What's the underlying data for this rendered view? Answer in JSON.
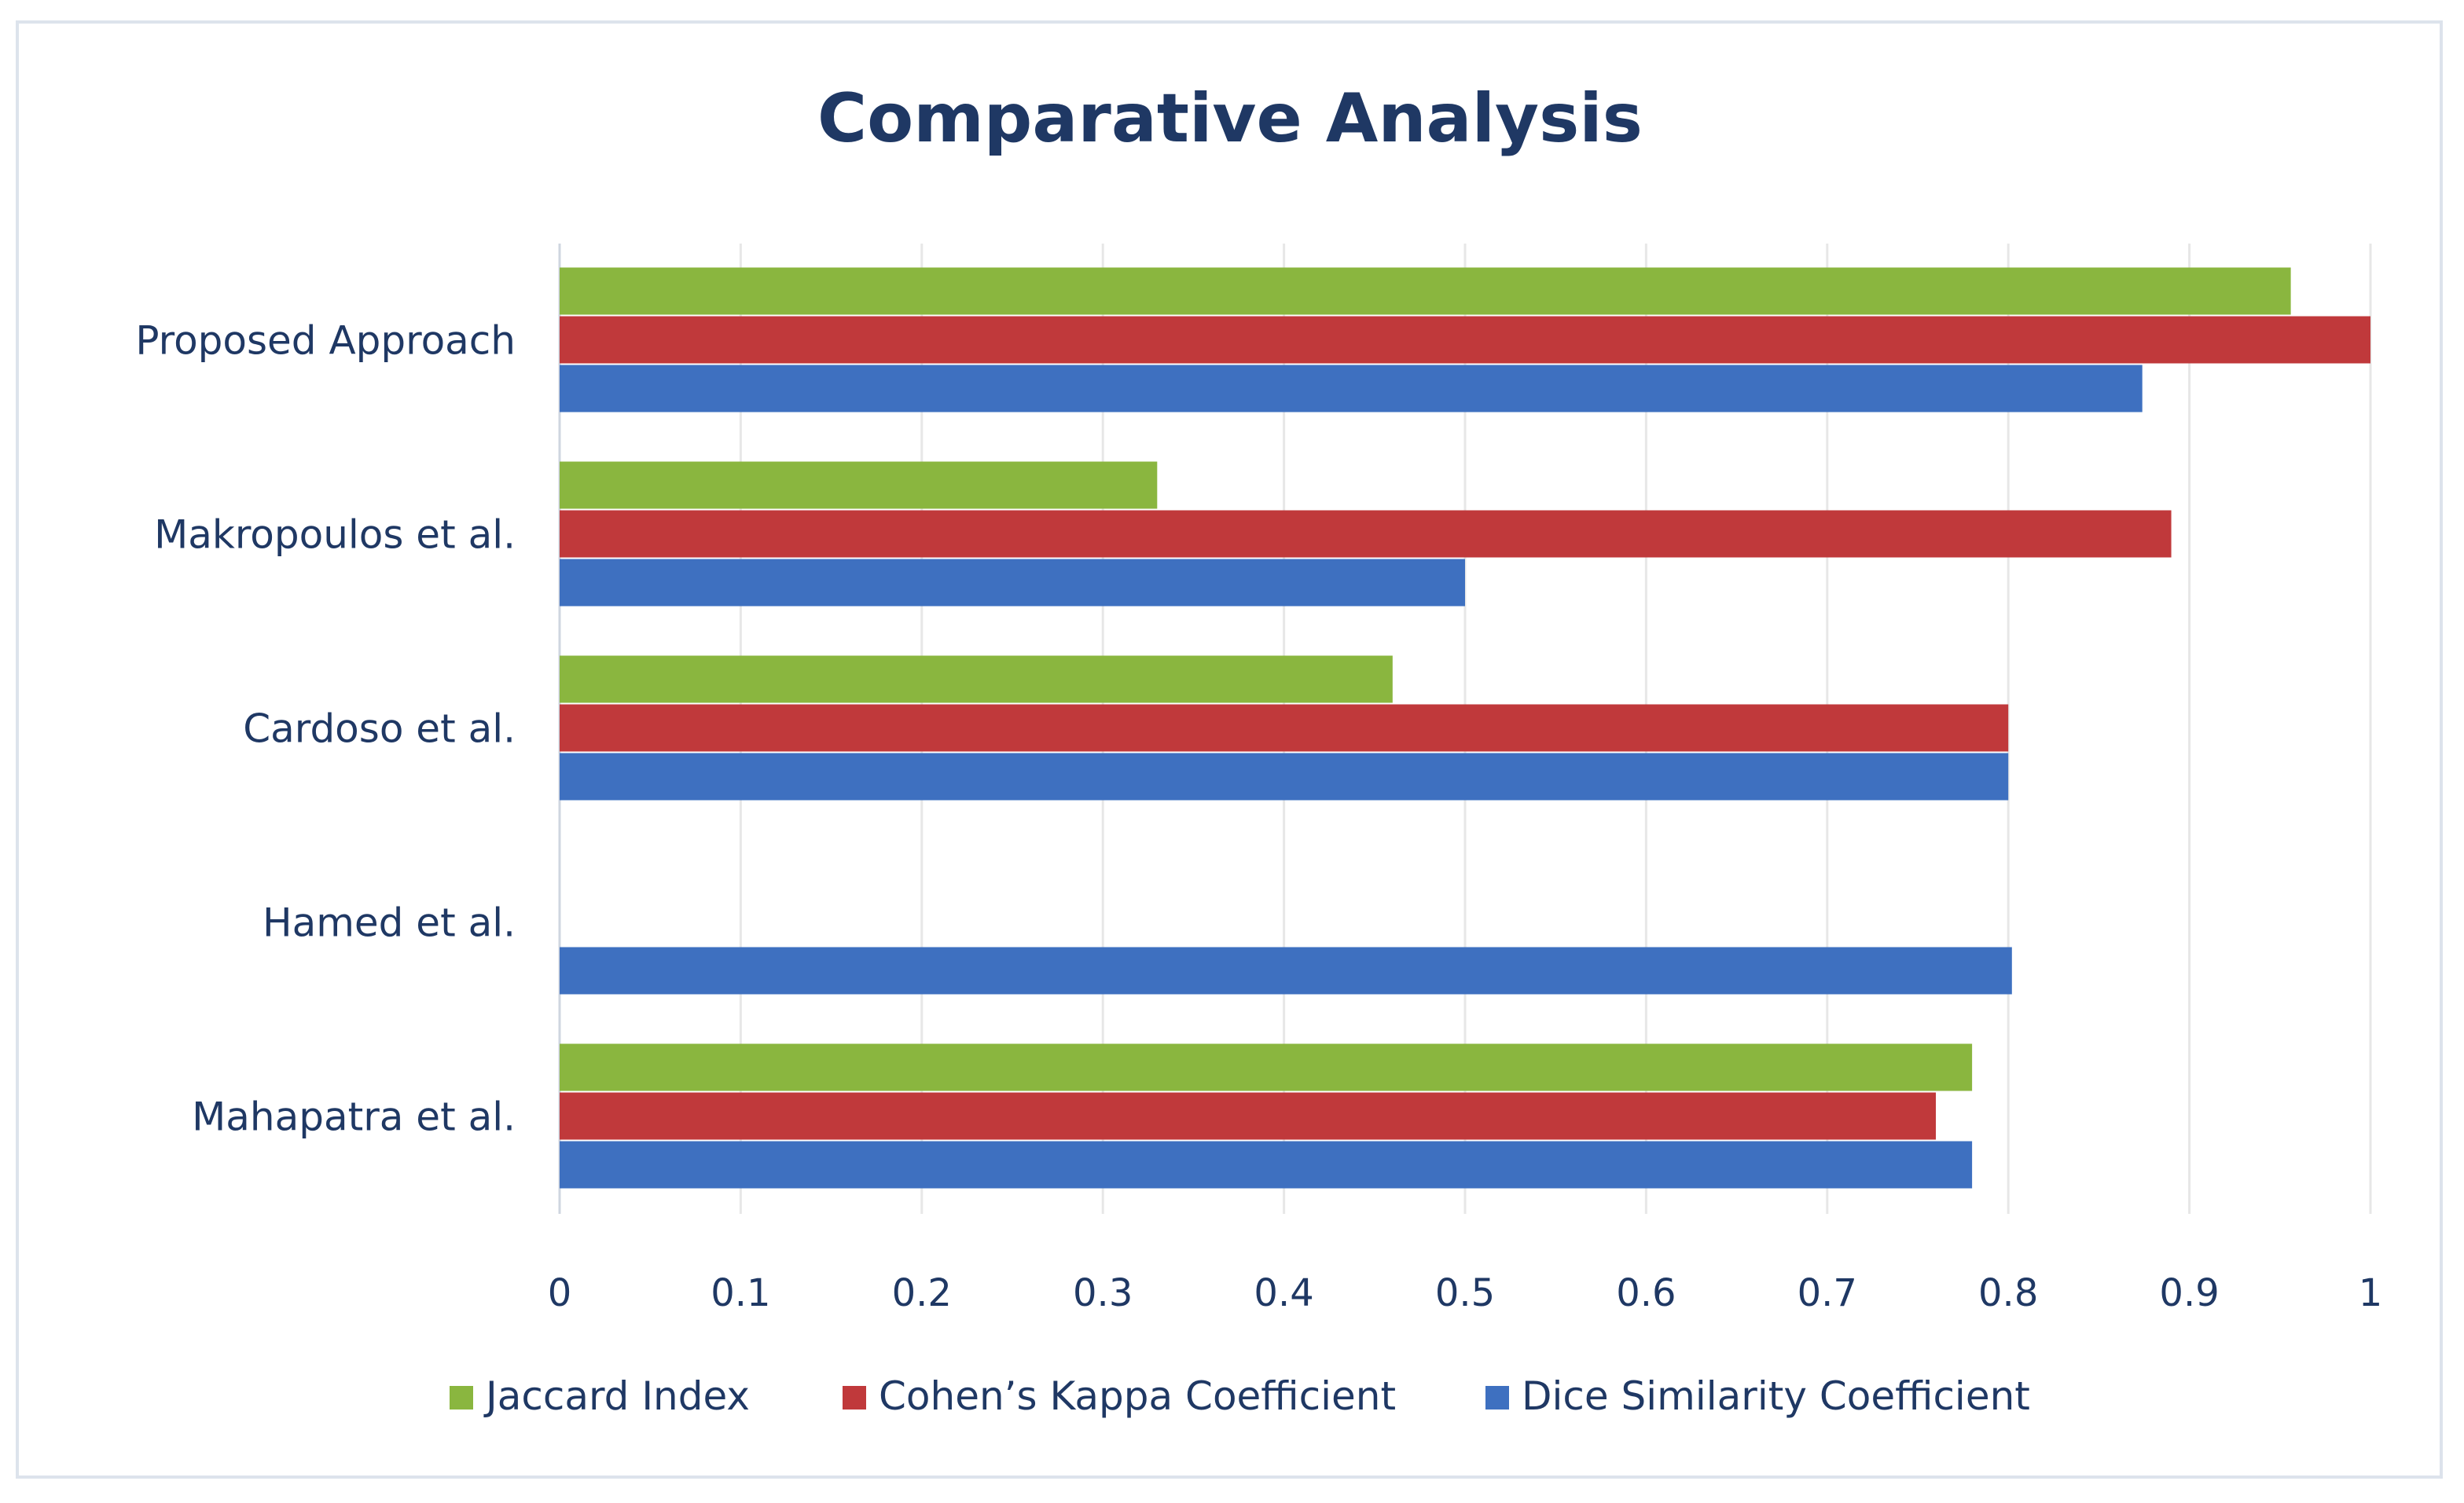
{
  "chart_data": {
    "type": "bar",
    "orientation": "horizontal",
    "title": "Comparative Analysis",
    "xlabel": "",
    "ylabel": "",
    "xlim": [
      0,
      1
    ],
    "x_ticks": [
      "0",
      "0.1",
      "0.2",
      "0.3",
      "0.4",
      "0.5",
      "0.6",
      "0.7",
      "0.8",
      "0.9",
      "1"
    ],
    "grid": true,
    "legend_position": "bottom",
    "categories": [
      "Proposed Approach",
      "Makropoulos et al.",
      "Cardoso et al.",
      "Hamed et al.",
      "Mahapatra et al."
    ],
    "series": [
      {
        "name": "Jaccard Index",
        "color": "#8ab63f",
        "values": [
          0.956,
          0.33,
          0.46,
          null,
          0.78
        ]
      },
      {
        "name": "Cohen’s Kappa Coefficient",
        "color": "#c0393b",
        "values": [
          1.0,
          0.89,
          0.8,
          null,
          0.76
        ]
      },
      {
        "name": "Dice Similarity Coefficient",
        "color": "#3e70c0",
        "values": [
          0.874,
          0.5,
          0.8,
          0.802,
          0.78
        ]
      }
    ]
  }
}
